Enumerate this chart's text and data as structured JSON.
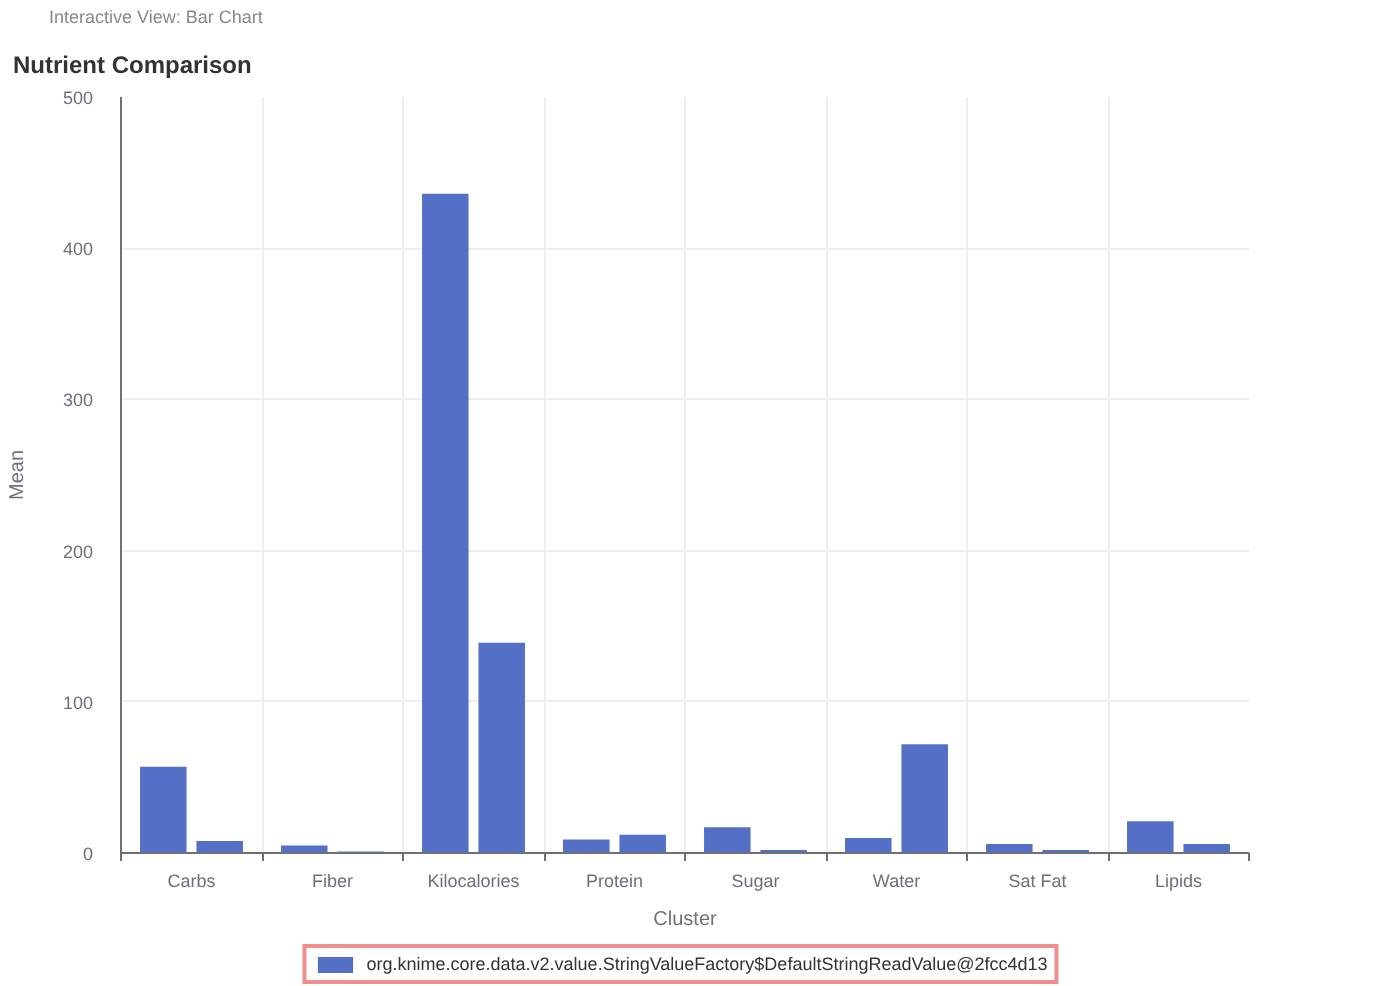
{
  "chart_data": {
    "type": "bar",
    "title": "Nutrient Comparison",
    "xlabel": "Cluster",
    "ylabel": "Mean",
    "annotations": [
      "Interactive View: Bar Chart"
    ],
    "categories": [
      "Carbs",
      "Fiber",
      "Kilocalories",
      "Protein",
      "Sugar",
      "Water",
      "Sat Fat",
      "Lipids"
    ],
    "series": [
      {
        "name": "org.knime.core.data.v2.value.StringValueFactory$DefaultStringReadValue@2fcc4d13",
        "color": "#5470c6",
        "values": [
          57,
          5,
          436,
          9,
          17,
          10,
          6,
          21
        ]
      },
      {
        "color": "#5470c6",
        "values": [
          8,
          1,
          139,
          12,
          2,
          72,
          2,
          6
        ]
      }
    ],
    "ylim": [
      0,
      500
    ],
    "yticks": [
      0,
      100,
      200,
      300,
      400,
      500
    ],
    "grid": true,
    "legend": "bottom"
  }
}
